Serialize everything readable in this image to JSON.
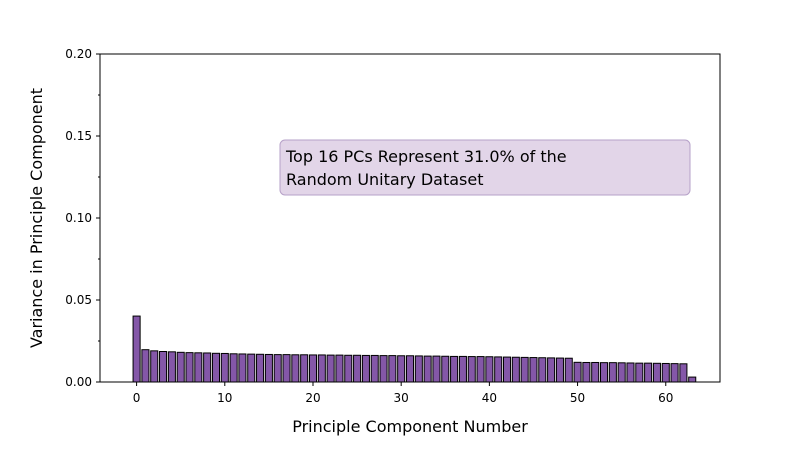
{
  "chart_data": {
    "type": "bar",
    "xlabel": "Principle Component Number",
    "ylabel": "Variance in Principle Component",
    "xlim": [
      -4.15,
      66.15
    ],
    "ylim": [
      0,
      0.2
    ],
    "xticks": [
      0,
      10,
      20,
      30,
      40,
      50,
      60
    ],
    "yticks": [
      0.0,
      0.05,
      0.1,
      0.15,
      0.2
    ],
    "ytick_labels": [
      "0.00",
      "0.05",
      "0.10",
      "0.15",
      "0.20"
    ],
    "grid": false,
    "bar_color": "#8457a8",
    "bar_edge_color": "#000000",
    "annotation": {
      "lines": [
        "Top 16 PCs Represent 31.0% of the",
        "Random Unitary Dataset"
      ],
      "box_color": "#e2d5e8",
      "box_edge_color": "#b6a1c8"
    },
    "x": [
      0,
      1,
      2,
      3,
      4,
      5,
      6,
      7,
      8,
      9,
      10,
      11,
      12,
      13,
      14,
      15,
      16,
      17,
      18,
      19,
      20,
      21,
      22,
      23,
      24,
      25,
      26,
      27,
      28,
      29,
      30,
      31,
      32,
      33,
      34,
      35,
      36,
      37,
      38,
      39,
      40,
      41,
      42,
      43,
      44,
      45,
      46,
      47,
      48,
      49,
      50,
      51,
      52,
      53,
      54,
      55,
      56,
      57,
      58,
      59,
      60,
      61,
      62,
      63
    ],
    "values": [
      0.0402,
      0.0197,
      0.019,
      0.0186,
      0.0184,
      0.0181,
      0.0179,
      0.0178,
      0.0177,
      0.0175,
      0.0174,
      0.0172,
      0.0171,
      0.017,
      0.0169,
      0.0168,
      0.0167,
      0.0167,
      0.0166,
      0.0166,
      0.0165,
      0.0165,
      0.0164,
      0.0164,
      0.0163,
      0.0163,
      0.0162,
      0.0162,
      0.0161,
      0.0161,
      0.016,
      0.016,
      0.0159,
      0.0158,
      0.0158,
      0.0157,
      0.0156,
      0.0156,
      0.0155,
      0.0155,
      0.0154,
      0.0153,
      0.0152,
      0.0151,
      0.015,
      0.0149,
      0.0148,
      0.0147,
      0.0146,
      0.0145,
      0.012,
      0.0119,
      0.0119,
      0.0118,
      0.0118,
      0.0117,
      0.0116,
      0.0115,
      0.0115,
      0.0114,
      0.0113,
      0.0112,
      0.0111,
      0.003
    ]
  }
}
